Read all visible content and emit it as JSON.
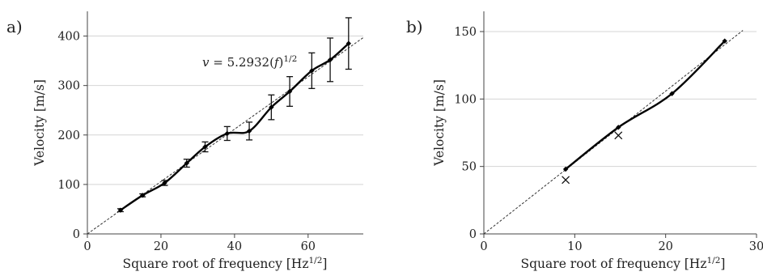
{
  "chart_data": [
    {
      "type": "line",
      "panel_label": "a)",
      "xlabel": "Square root of frequency  [Hz",
      "xlabel_sup": "1/2",
      "xlabel_end": "]",
      "ylabel": "Velocity [m/s]",
      "xlim": [
        0,
        75
      ],
      "ylim": [
        0,
        450
      ],
      "xticks": [
        0,
        20,
        40,
        60
      ],
      "yticks": [
        0,
        100,
        200,
        300,
        400
      ],
      "grid": "horizontal",
      "series": [
        {
          "x": [
            9,
            15,
            21,
            27,
            32,
            38,
            44,
            50,
            55,
            61,
            66,
            71
          ],
          "y": [
            48,
            78,
            103,
            143,
            176,
            203,
            208,
            256,
            288,
            330,
            352,
            385
          ],
          "err": [
            3,
            3,
            5,
            8,
            10,
            14,
            18,
            25,
            30,
            36,
            44,
            52
          ]
        }
      ],
      "fit_line": {
        "slope": 5.2932,
        "x_range": [
          0,
          75
        ]
      },
      "annotation": {
        "text_prefix": "v",
        "text_middle": " = 5.2932(",
        "text_var": "f",
        "text_close": ")",
        "text_sup": "1/2"
      }
    },
    {
      "type": "line",
      "panel_label": "b)",
      "xlabel": "Square root of frequency  [Hz",
      "xlabel_sup": "1/2",
      "xlabel_end": "]",
      "ylabel": "Velocity [m/s]",
      "xlim": [
        0,
        30
      ],
      "ylim": [
        0,
        165
      ],
      "xticks": [
        0,
        10,
        20,
        30
      ],
      "yticks": [
        0,
        50,
        100,
        150
      ],
      "grid": "horizontal",
      "series": [
        {
          "x": [
            9,
            14.8,
            20.7,
            26.5
          ],
          "y": [
            48,
            79,
            104,
            143
          ]
        }
      ],
      "cross_markers": {
        "x": [
          9,
          14.8
        ],
        "y": [
          40,
          73
        ]
      },
      "fit_line": {
        "slope": 5.2932,
        "x_range": [
          0,
          28.5
        ]
      }
    }
  ]
}
